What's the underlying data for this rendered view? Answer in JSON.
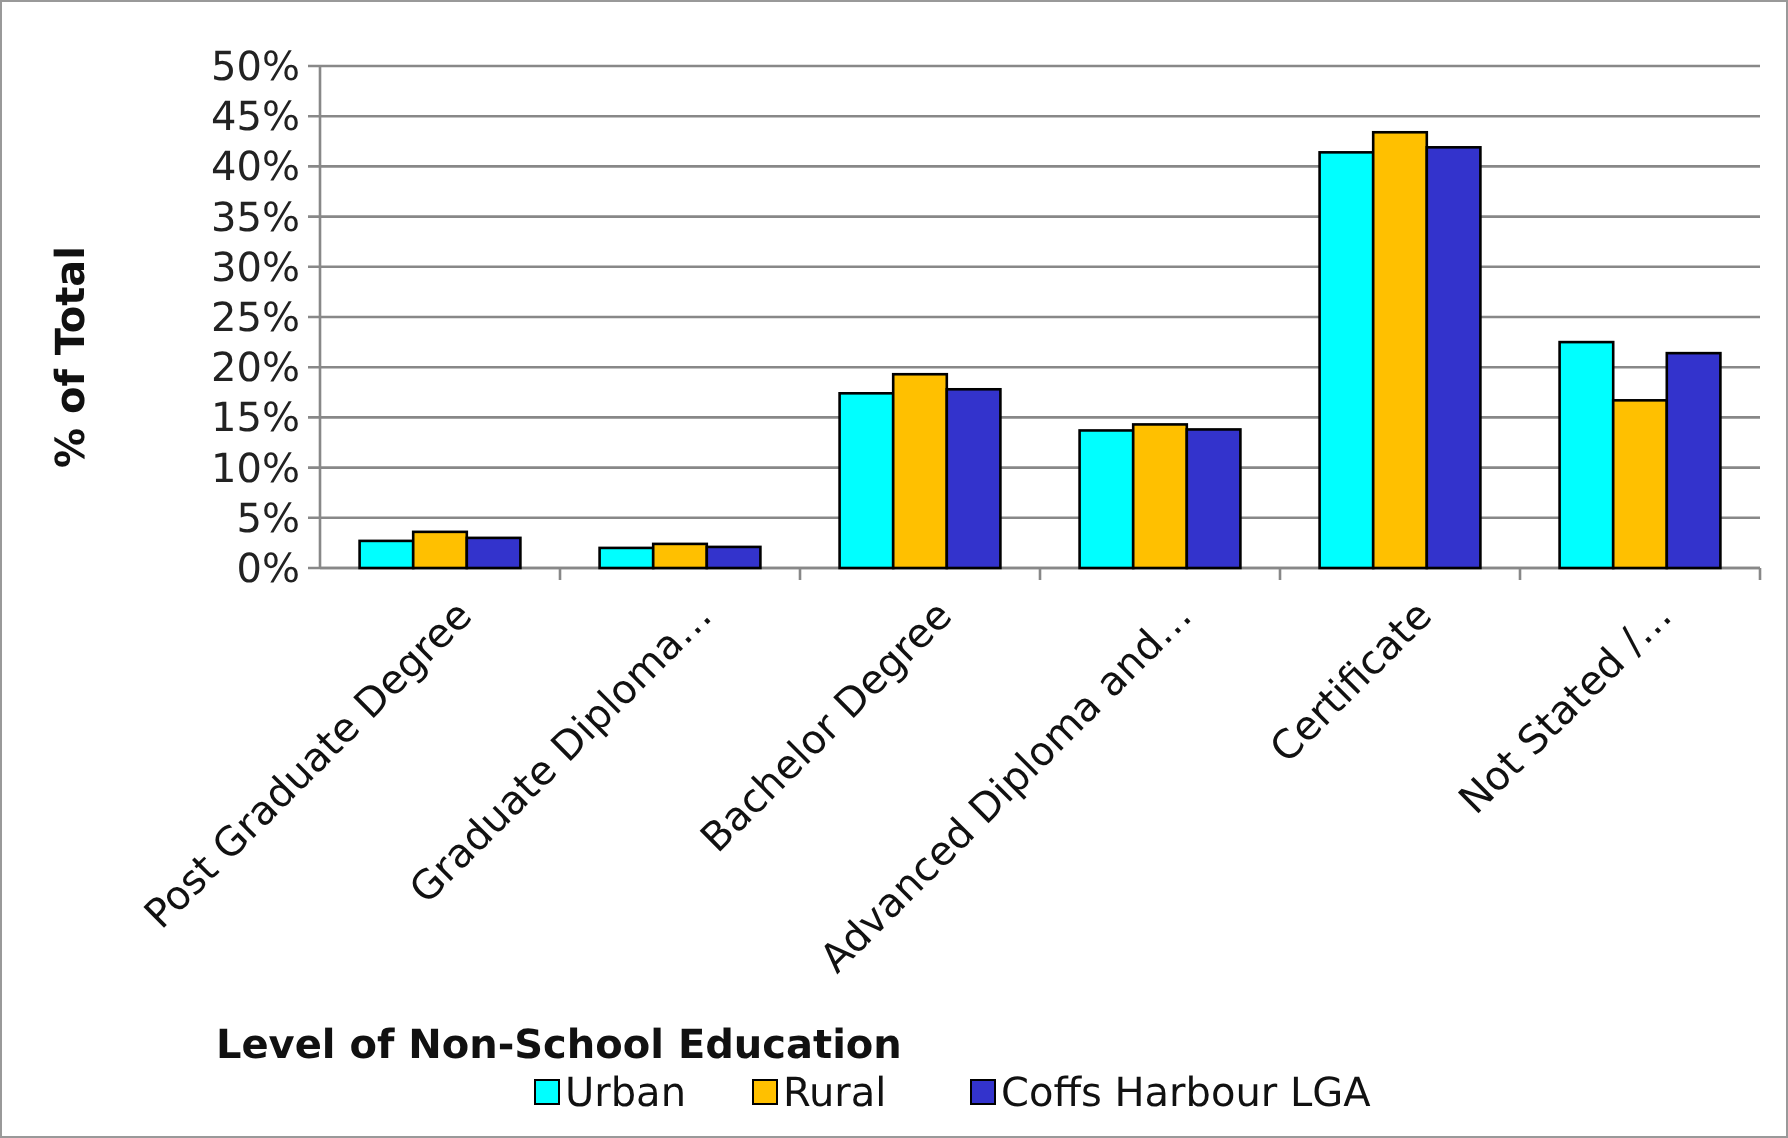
{
  "chart_data": {
    "type": "bar",
    "xlabel": "Level of Non-School Education",
    "ylabel": "% of Total",
    "categories": [
      "Post Graduate Degree",
      "Graduate  Diploma…",
      "Bachelor Degree",
      "Advanced Diploma and…",
      "Certificate",
      "Not Stated /…"
    ],
    "series": [
      {
        "name": "Urban",
        "color": "#00ffff",
        "values": [
          2.7,
          2.0,
          17.4,
          13.7,
          41.4,
          22.5
        ]
      },
      {
        "name": "Rural",
        "color": "#ffc000",
        "values": [
          3.6,
          2.4,
          19.3,
          14.3,
          43.4,
          16.7
        ]
      },
      {
        "name": "Coffs Harbour LGA",
        "color": "#3333cc",
        "values": [
          3.0,
          2.1,
          17.8,
          13.8,
          41.9,
          21.4
        ]
      }
    ],
    "ylim": [
      0,
      50
    ],
    "yticks": [
      {
        "value": 0,
        "label": "0%"
      },
      {
        "value": 5,
        "label": "5%"
      },
      {
        "value": 10,
        "label": "10%"
      },
      {
        "value": 15,
        "label": "15%"
      },
      {
        "value": 20,
        "label": "20%"
      },
      {
        "value": 25,
        "label": "25%"
      },
      {
        "value": 30,
        "label": "30%"
      },
      {
        "value": 35,
        "label": "35%"
      },
      {
        "value": 40,
        "label": "40%"
      },
      {
        "value": 45,
        "label": "45%"
      },
      {
        "value": 50,
        "label": "50%"
      }
    ],
    "grid": "y",
    "legend": "bottom"
  }
}
